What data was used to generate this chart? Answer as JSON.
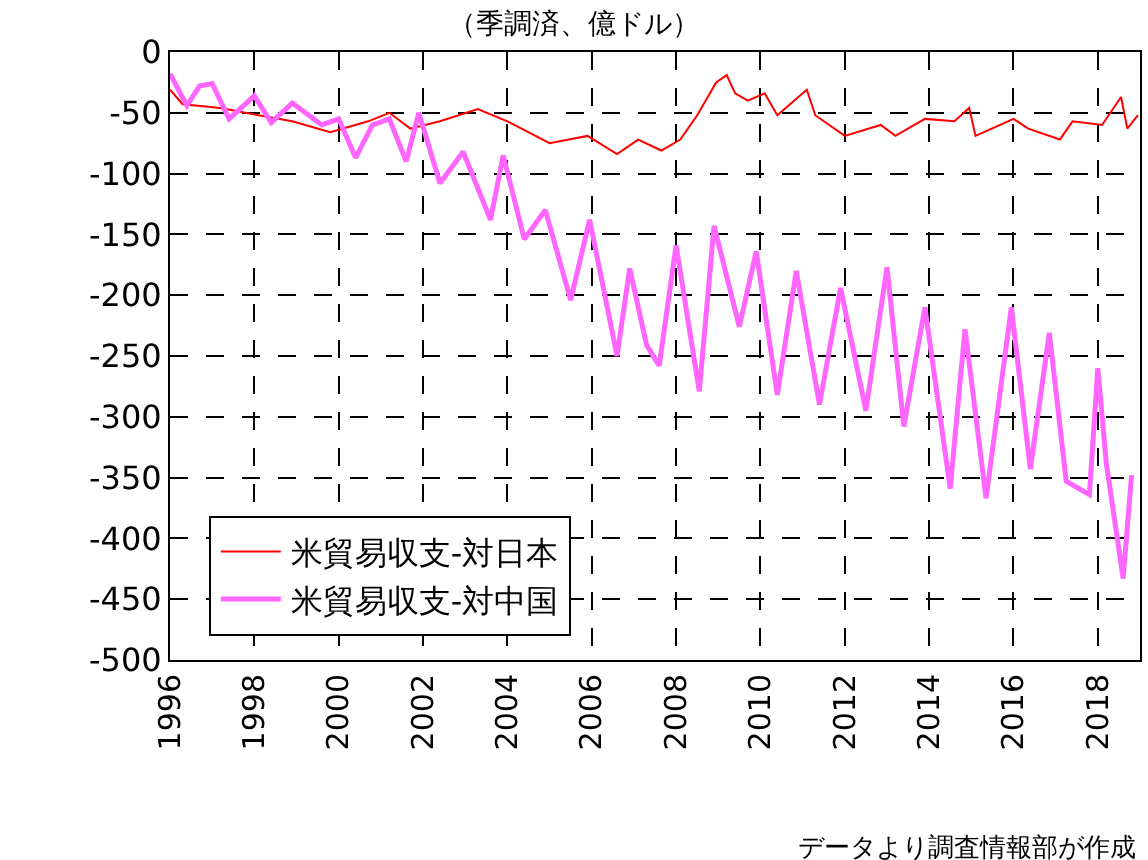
{
  "chart_data": {
    "type": "line",
    "title": "（季調済、億ドル）",
    "annotations": [
      "データより調査情報部が作成"
    ],
    "xlim": [
      1996,
      2019
    ],
    "xticks": [
      1996,
      1998,
      2000,
      2002,
      2004,
      2006,
      2008,
      2010,
      2012,
      2014,
      2016,
      2018
    ],
    "ylim": [
      -500,
      0
    ],
    "yticks": [
      0,
      -50,
      -100,
      -150,
      -200,
      -250,
      -300,
      -350,
      -400,
      -450,
      -500
    ],
    "grid": true,
    "legend": "bottom left",
    "marker": "none",
    "line_style": "solid",
    "series": [
      {
        "name": "米貿易収支-対日本",
        "color": "#ff0000",
        "x": [
          1996.0,
          1996.3,
          1997.2,
          1998.1,
          1998.9,
          1999.8,
          2000.7,
          2001.2,
          2001.7,
          2002.4,
          2003.3,
          2004.0,
          2005.0,
          2005.9,
          2006.6,
          2007.1,
          2007.65,
          2008.1,
          2008.5,
          2008.95,
          2009.2,
          2009.4,
          2009.7,
          2010.1,
          2010.4,
          2011.1,
          2011.3,
          2012.0,
          2012.85,
          2013.2,
          2013.9,
          2014.6,
          2014.95,
          2015.1,
          2016.0,
          2016.35,
          2017.1,
          2017.4,
          2018.1,
          2018.55,
          2018.7,
          2018.95
        ],
        "values": [
          -31,
          -43,
          -46,
          -52,
          -57,
          -66,
          -57,
          -50,
          -63,
          -57,
          -47,
          -57,
          -75,
          -69,
          -84,
          -72,
          -81,
          -72,
          -52,
          -25,
          -19,
          -34,
          -40,
          -34,
          -52,
          -31,
          -52,
          -69,
          -60,
          -69,
          -55,
          -57,
          -46,
          -69,
          -55,
          -63,
          -72,
          -57,
          -60,
          -37,
          -63,
          -52
        ]
      },
      {
        "name": "米貿易収支-対中国",
        "color": "#ff66ff",
        "x": [
          1996.0,
          1996.4,
          1996.7,
          1997.0,
          1997.4,
          1998.0,
          1998.4,
          1998.9,
          1999.6,
          2000.0,
          2000.4,
          2000.8,
          2001.2,
          2001.6,
          2001.9,
          2002.4,
          2002.95,
          2003.6,
          2003.9,
          2004.4,
          2004.9,
          2005.5,
          2005.95,
          2006.6,
          2006.9,
          2007.3,
          2007.6,
          2008.0,
          2008.55,
          2008.9,
          2009.5,
          2009.9,
          2010.4,
          2010.85,
          2011.4,
          2011.9,
          2012.5,
          2013.0,
          2013.4,
          2013.9,
          2014.5,
          2014.85,
          2015.35,
          2015.95,
          2016.4,
          2016.85,
          2017.25,
          2017.8,
          2018.0,
          2018.2,
          2018.6,
          2018.8
        ],
        "values": [
          -18,
          -44,
          -28,
          -26,
          -55,
          -36,
          -58,
          -42,
          -60,
          -55,
          -87,
          -60,
          -55,
          -90,
          -50,
          -108,
          -82,
          -138,
          -85,
          -154,
          -130,
          -204,
          -138,
          -250,
          -178,
          -241,
          -258,
          -159,
          -279,
          -143,
          -226,
          -164,
          -282,
          -180,
          -290,
          -194,
          -295,
          -177,
          -308,
          -210,
          -359,
          -228,
          -367,
          -210,
          -343,
          -231,
          -353,
          -364,
          -260,
          -338,
          -433,
          -348
        ]
      }
    ]
  }
}
